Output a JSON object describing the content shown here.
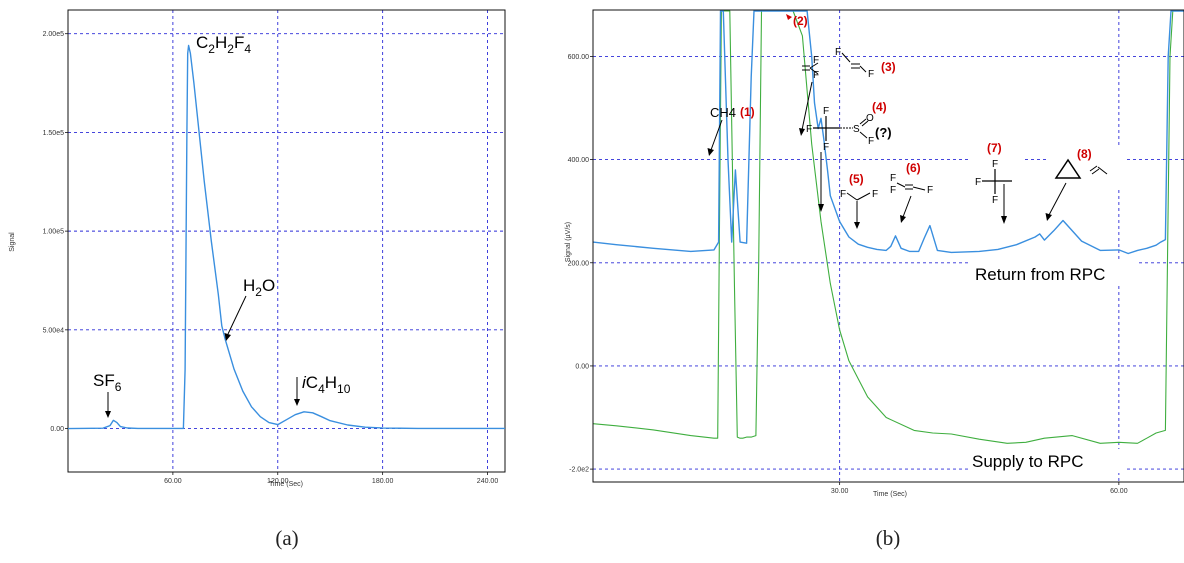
{
  "chart_data": [
    {
      "type": "line",
      "panel_label": "(a)",
      "xlabel": "Time (Sec)",
      "ylabel": "Signal",
      "xlim": [
        0,
        250
      ],
      "ylim": [
        -22000,
        212000
      ],
      "grid": true,
      "x_ticks": [
        60,
        120,
        180,
        240
      ],
      "x_tick_labels": [
        "60.00",
        "120.00",
        "180.00",
        "240.00"
      ],
      "y_ticks": [
        0,
        50000,
        100000,
        150000,
        200000
      ],
      "y_tick_labels": [
        "0.00",
        "5.00e4",
        "1.00e5",
        "1.50e5",
        "2.00e5"
      ],
      "series": [
        {
          "color": "#3a8fdf",
          "x": [
            0,
            20,
            24,
            26,
            28,
            30,
            34,
            40,
            50,
            60,
            66,
            67,
            68,
            68.5,
            69,
            70,
            72,
            75,
            78,
            82,
            86,
            88,
            90,
            95,
            100,
            105,
            110,
            115,
            120,
            125,
            130,
            135,
            140,
            145,
            150,
            160,
            170,
            180,
            200,
            220,
            240,
            250
          ],
          "y": [
            0,
            200,
            1500,
            4200,
            3000,
            1000,
            300,
            100,
            100,
            100,
            100,
            30000,
            150000,
            190000,
            194000,
            190000,
            175000,
            150000,
            125000,
            95000,
            68000,
            52000,
            45000,
            30000,
            19000,
            11000,
            6000,
            3000,
            2000,
            4500,
            7000,
            8500,
            8000,
            6000,
            4000,
            1800,
            700,
            300,
            100,
            100,
            100,
            100
          ]
        }
      ],
      "annotations": [
        {
          "label": "SF",
          "sub": "6",
          "x": 24,
          "y": 4200
        },
        {
          "label": "C2H2F4",
          "x": 69,
          "y": 194000
        },
        {
          "label": "H2O",
          "x": 86,
          "y": 45000
        },
        {
          "label": "iC4H10",
          "x": 135,
          "y": 9000
        }
      ]
    },
    {
      "type": "line",
      "panel_label": "(b)",
      "xlabel": "Time (Sec)",
      "ylabel": "Signal (µV/s)",
      "xlim": [
        3.5,
        67
      ],
      "ylim": [
        -225,
        690
      ],
      "grid": true,
      "x_ticks": [
        30,
        60
      ],
      "x_tick_labels": [
        "30.00",
        "60.00"
      ],
      "y_ticks": [
        -200,
        0,
        200,
        400,
        600
      ],
      "y_tick_labels": [
        "-2.0e2",
        "0.00",
        "200.00",
        "400.00",
        "600.00"
      ],
      "series": [
        {
          "name": "Return from RPC",
          "color": "#3a8fdf",
          "x": [
            3.5,
            6,
            10,
            14,
            16.5,
            17,
            17.2,
            17.5,
            18,
            18.4,
            18.8,
            19.3,
            20,
            20.5,
            20.8,
            21,
            23,
            25.5,
            26.5,
            27,
            27.3,
            27.7,
            28,
            28.3,
            28.7,
            29,
            30,
            31,
            32,
            33,
            34,
            35,
            35.5,
            36,
            36.6,
            37.5,
            38.5,
            39.1,
            39.7,
            40.5,
            42,
            45,
            47,
            49,
            51,
            51.5,
            52,
            53,
            54,
            56,
            58,
            60,
            61,
            62,
            63,
            64,
            64.5,
            65,
            65.3,
            65.6,
            66,
            67
          ],
          "y": [
            240,
            235,
            228,
            222,
            225,
            240,
            690,
            700,
            400,
            240,
            380,
            240,
            238,
            560,
            690,
            700,
            700,
            700,
            690,
            600,
            510,
            460,
            480,
            440,
            380,
            330,
            280,
            250,
            236,
            230,
            226,
            224,
            232,
            252,
            228,
            222,
            222,
            248,
            272,
            224,
            220,
            222,
            226,
            235,
            250,
            256,
            244,
            262,
            282,
            242,
            224,
            225,
            218,
            224,
            228,
            234,
            240,
            245,
            600,
            700,
            700,
            700
          ]
        },
        {
          "name": "Supply to RPC",
          "color": "#3fae3f",
          "x": [
            3.5,
            6,
            10,
            14,
            16.5,
            16.9,
            17.1,
            17.3,
            17.6,
            18.2,
            18.7,
            19,
            19.3,
            19.6,
            20,
            20.5,
            21,
            21.3,
            21.6,
            22,
            23,
            24,
            25,
            26,
            27,
            28,
            29,
            30,
            31,
            33,
            35,
            38,
            40,
            42,
            45,
            48,
            50,
            52,
            55,
            58,
            60,
            62,
            63,
            64,
            65,
            65.5,
            65.8,
            66,
            67
          ],
          "y": [
            -112,
            -116,
            -124,
            -135,
            -140,
            -140,
            300,
            700,
            700,
            700,
            150,
            -138,
            -140,
            -140,
            -138,
            -138,
            -135,
            200,
            700,
            700,
            700,
            700,
            700,
            640,
            430,
            280,
            160,
            70,
            10,
            -60,
            -100,
            -125,
            -130,
            -132,
            -142,
            -150,
            -148,
            -140,
            -135,
            -150,
            -148,
            -150,
            -140,
            -130,
            -125,
            600,
            700,
            700,
            700
          ]
        }
      ],
      "labels": {
        "return": "Return from RPC",
        "supply": "Supply to RPC",
        "ch4": "CH4",
        "unknown": "(?)"
      },
      "peaks": [
        {
          "num": "(1)",
          "x": 18.4
        },
        {
          "num": "(2)",
          "x": 23.2
        },
        {
          "num": "(3)",
          "x": 27.7
        },
        {
          "num": "(4)",
          "x": 29.2
        },
        {
          "num": "(5)",
          "x": 35.9
        },
        {
          "num": "(6)",
          "x": 39.6
        },
        {
          "num": "(7)",
          "x": 47.5
        },
        {
          "num": "(8)",
          "x": 51.5
        }
      ]
    }
  ]
}
